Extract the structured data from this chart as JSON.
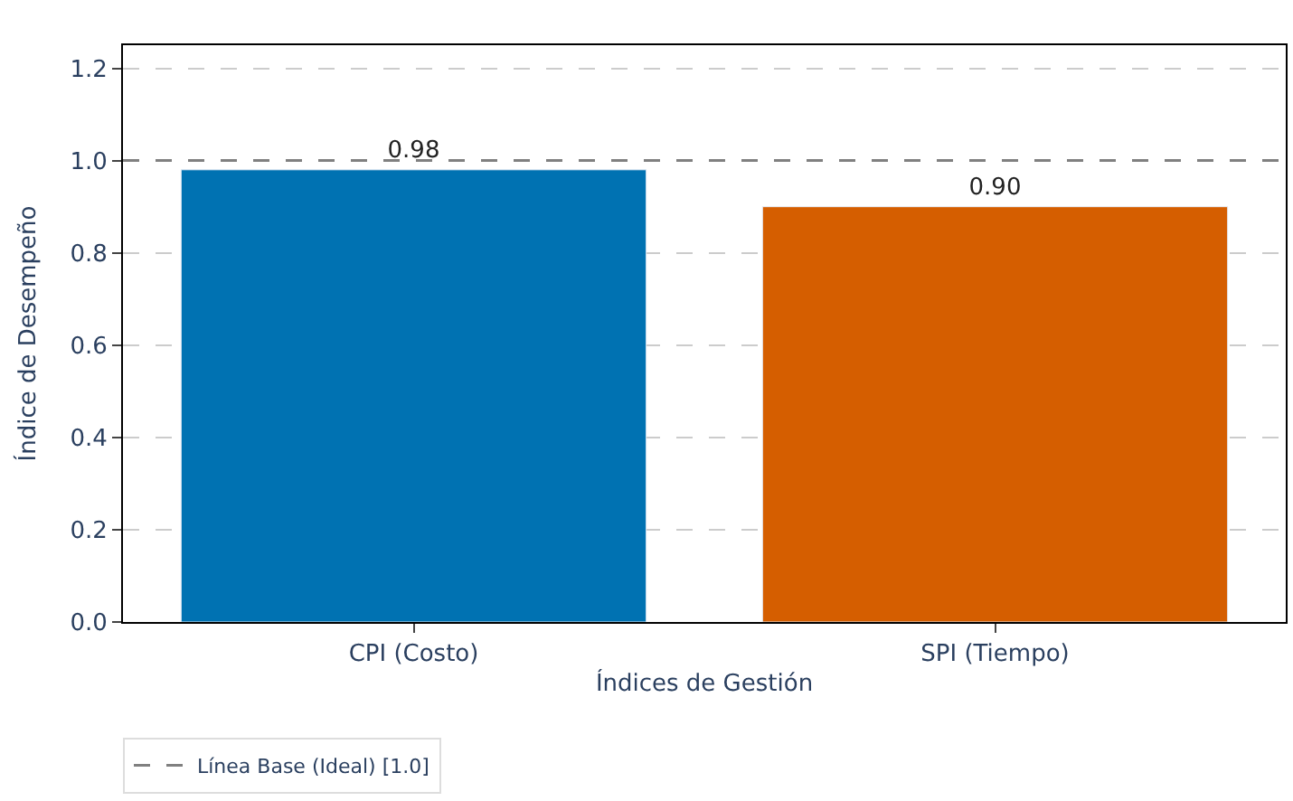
{
  "chart_data": {
    "type": "bar",
    "xlabel": "Índices de Gestión",
    "ylabel": "Índice de Desempeño",
    "categories": [
      "CPI (Costo)",
      "SPI (Tiempo)"
    ],
    "values": [
      0.98,
      0.9
    ],
    "colors": [
      "#0072b2",
      "#d55e00"
    ],
    "value_labels": [
      "0.98",
      "0.90"
    ],
    "ylim": [
      0,
      1.25
    ],
    "yticks": [
      {
        "value": 0,
        "label": "0.0"
      },
      0.2,
      0.4,
      0.6,
      0.8,
      {
        "value": 1,
        "label": "1.0"
      },
      1.2
    ],
    "grid": "y",
    "legend": "bottom left",
    "ref_lines": [
      {
        "axis": "y",
        "value": 1.0,
        "label": "Línea Base (Ideal) [1.0]",
        "color": "#808080",
        "line_style": "dashed"
      }
    ]
  }
}
